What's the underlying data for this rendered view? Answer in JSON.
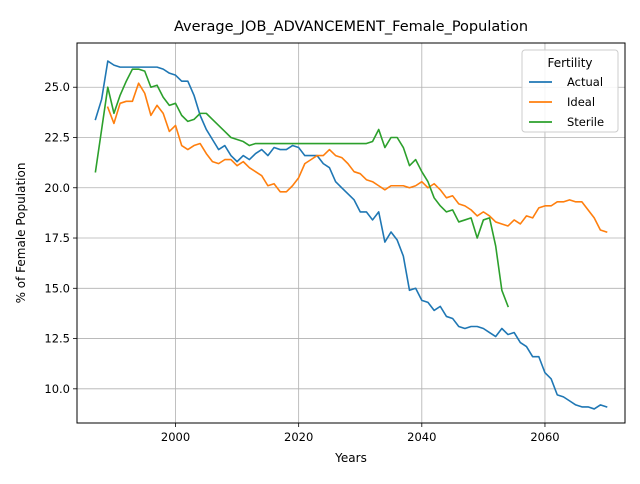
{
  "chart_data": {
    "type": "line",
    "title": "Average_JOB_ADVANCEMENT_Female_Population",
    "xlabel": "Years",
    "ylabel": "% of Female Population",
    "xlim": [
      1984,
      2073
    ],
    "ylim": [
      8.3,
      27.2
    ],
    "xticks": [
      2000,
      2020,
      2040,
      2060
    ],
    "yticks": [
      10.0,
      12.5,
      15.0,
      17.5,
      20.0,
      22.5,
      25.0
    ],
    "grid": true,
    "legend": {
      "title": "Fertility",
      "position": "top-right"
    },
    "series": [
      {
        "name": "Actual",
        "color": "#1f77b4",
        "x": [
          1987,
          1988,
          1989,
          1990,
          1991,
          1992,
          1993,
          1994,
          1995,
          1996,
          1997,
          1998,
          1999,
          2000,
          2001,
          2002,
          2003,
          2004,
          2005,
          2006,
          2007,
          2008,
          2009,
          2010,
          2011,
          2012,
          2013,
          2014,
          2015,
          2016,
          2017,
          2018,
          2019,
          2020,
          2021,
          2022,
          2023,
          2024,
          2025,
          2026,
          2027,
          2028,
          2029,
          2030,
          2031,
          2032,
          2033,
          2034,
          2035,
          2036,
          2037,
          2038,
          2039,
          2040,
          2041,
          2042,
          2043,
          2044,
          2045,
          2046,
          2047,
          2048,
          2049,
          2050,
          2051,
          2052,
          2053,
          2054,
          2055,
          2056,
          2057,
          2058,
          2059,
          2060,
          2061,
          2062,
          2063,
          2064,
          2065,
          2066,
          2067,
          2068,
          2069,
          2070
        ],
        "values": [
          23.4,
          24.4,
          26.3,
          26.1,
          26.0,
          26.0,
          26.0,
          26.0,
          26.0,
          26.0,
          26.0,
          25.9,
          25.7,
          25.6,
          25.3,
          25.3,
          24.6,
          23.6,
          22.9,
          22.4,
          21.9,
          22.1,
          21.6,
          21.3,
          21.6,
          21.4,
          21.7,
          21.9,
          21.6,
          22.0,
          21.9,
          21.9,
          22.1,
          22.0,
          21.6,
          21.6,
          21.6,
          21.2,
          21.0,
          20.3,
          20.0,
          19.7,
          19.4,
          18.8,
          18.8,
          18.4,
          18.8,
          17.3,
          17.8,
          17.4,
          16.6,
          14.9,
          15.0,
          14.4,
          14.3,
          13.9,
          14.1,
          13.6,
          13.5,
          13.1,
          13.0,
          13.1,
          13.1,
          13.0,
          12.8,
          12.6,
          13.0,
          12.7,
          12.8,
          12.3,
          12.1,
          11.6,
          11.6,
          10.8,
          10.5,
          9.7,
          9.6,
          9.4,
          9.2,
          9.1,
          9.1,
          9.0,
          9.2,
          9.1
        ]
      },
      {
        "name": "Ideal",
        "color": "#ff7f0e",
        "x": [
          1989,
          1990,
          1991,
          1992,
          1993,
          1994,
          1995,
          1996,
          1997,
          1998,
          1999,
          2000,
          2001,
          2002,
          2003,
          2004,
          2005,
          2006,
          2007,
          2008,
          2009,
          2010,
          2011,
          2012,
          2013,
          2014,
          2015,
          2016,
          2017,
          2018,
          2019,
          2020,
          2021,
          2022,
          2023,
          2024,
          2025,
          2026,
          2027,
          2028,
          2029,
          2030,
          2031,
          2032,
          2033,
          2034,
          2035,
          2036,
          2037,
          2038,
          2039,
          2040,
          2041,
          2042,
          2043,
          2044,
          2045,
          2046,
          2047,
          2048,
          2049,
          2050,
          2051,
          2052,
          2053,
          2054,
          2055,
          2056,
          2057,
          2058,
          2059,
          2060,
          2061,
          2062,
          2063,
          2064,
          2065,
          2066,
          2067,
          2068,
          2069,
          2070
        ],
        "values": [
          24.0,
          23.2,
          24.2,
          24.3,
          24.3,
          25.2,
          24.7,
          23.6,
          24.1,
          23.7,
          22.8,
          23.1,
          22.1,
          21.9,
          22.1,
          22.2,
          21.7,
          21.3,
          21.2,
          21.4,
          21.4,
          21.1,
          21.3,
          21.0,
          20.8,
          20.6,
          20.1,
          20.2,
          19.8,
          19.8,
          20.1,
          20.5,
          21.2,
          21.4,
          21.6,
          21.6,
          21.9,
          21.6,
          21.5,
          21.2,
          20.8,
          20.7,
          20.4,
          20.3,
          20.1,
          19.9,
          20.1,
          20.1,
          20.1,
          20.0,
          20.1,
          20.3,
          20.0,
          20.2,
          19.9,
          19.5,
          19.6,
          19.2,
          19.1,
          18.9,
          18.6,
          18.8,
          18.6,
          18.3,
          18.2,
          18.1,
          18.4,
          18.2,
          18.6,
          18.5,
          19.0,
          19.1,
          19.1,
          19.3,
          19.3,
          19.4,
          19.3,
          19.3,
          18.9,
          18.5,
          17.9,
          17.8
        ]
      },
      {
        "name": "Sterile",
        "color": "#2ca02c",
        "x": [
          1987,
          1988,
          1989,
          1990,
          1991,
          1992,
          1993,
          1994,
          1995,
          1996,
          1997,
          1998,
          1999,
          2000,
          2001,
          2002,
          2003,
          2004,
          2005,
          2006,
          2007,
          2008,
          2009,
          2010,
          2011,
          2012,
          2013,
          2014,
          2015,
          2016,
          2017,
          2018,
          2019,
          2020,
          2021,
          2022,
          2023,
          2024,
          2025,
          2026,
          2027,
          2028,
          2029,
          2030,
          2031,
          2032,
          2033,
          2034,
          2035,
          2036,
          2037,
          2038,
          2039,
          2040,
          2041,
          2042,
          2043,
          2044,
          2045,
          2046,
          2047,
          2048,
          2049,
          2050,
          2051,
          2052,
          2053,
          2054
        ],
        "values": [
          20.8,
          22.9,
          25.0,
          23.7,
          24.6,
          25.3,
          25.9,
          25.9,
          25.8,
          25.0,
          25.1,
          24.5,
          24.1,
          24.2,
          23.6,
          23.3,
          23.4,
          23.7,
          23.7,
          23.4,
          23.1,
          22.8,
          22.5,
          22.4,
          22.3,
          22.1,
          22.2,
          22.2,
          22.2,
          22.2,
          22.2,
          22.2,
          22.2,
          22.2,
          22.2,
          22.2,
          22.2,
          22.2,
          22.2,
          22.2,
          22.2,
          22.2,
          22.2,
          22.2,
          22.2,
          22.3,
          22.9,
          22.0,
          22.5,
          22.5,
          22.0,
          21.1,
          21.4,
          20.8,
          20.3,
          19.5,
          19.1,
          18.8,
          18.9,
          18.3,
          18.4,
          18.5,
          17.5,
          18.4,
          18.5,
          17.1,
          14.9,
          14.1
        ]
      }
    ]
  }
}
